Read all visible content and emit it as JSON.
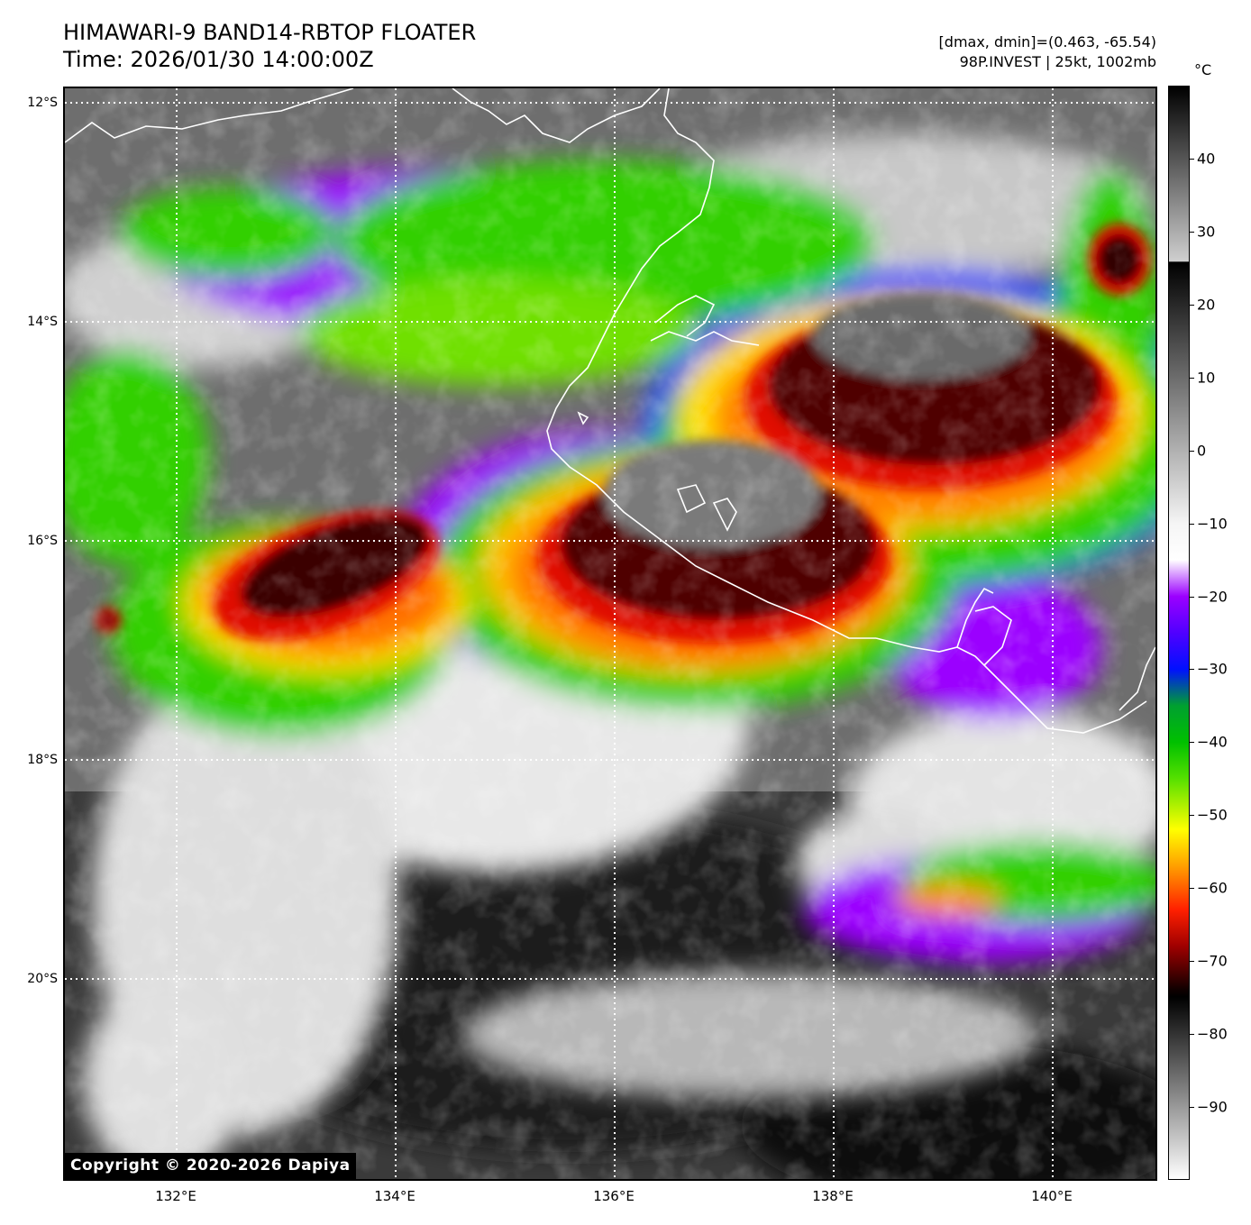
{
  "header": {
    "title_line1": "HIMAWARI-9 BAND14-RBTOP FLOATER",
    "title_line2": "Time: 2026/01/30 14:00:00Z",
    "info_line1": "[dmax, dmin]=(0.463, -65.54)",
    "info_line2": "98P.INVEST | 25kt, 1002mb"
  },
  "map": {
    "lat_labels": [
      "12°S",
      "14°S",
      "16°S",
      "18°S",
      "20°S"
    ],
    "lon_labels": [
      "132°E",
      "134°E",
      "136°E",
      "138°E",
      "140°E"
    ],
    "copyright": "Copyright © 2020-2026 Dapiya",
    "grid": "dotted white",
    "coastline_color": "#ffffff"
  },
  "colorbar": {
    "unit": "°C",
    "tick_labels": [
      "40",
      "30",
      "20",
      "10",
      "0",
      "−10",
      "−20",
      "−30",
      "−40",
      "−50",
      "−60",
      "−70",
      "−80",
      "−90"
    ],
    "tick_values": [
      40,
      30,
      20,
      10,
      0,
      -10,
      -20,
      -30,
      -40,
      -50,
      -60,
      -70,
      -80,
      -90
    ],
    "range": [
      -100,
      50
    ],
    "color_stops": [
      {
        "value": 50,
        "color": "#000000"
      },
      {
        "value": 26,
        "color": "#cfcfcf"
      },
      {
        "value": 25.9,
        "color": "#000000"
      },
      {
        "value": -10,
        "color": "#f5f5f5"
      },
      {
        "value": -15,
        "color": "#ffffff"
      },
      {
        "value": -20,
        "color": "#9b00ff"
      },
      {
        "value": -25,
        "color": "#5000ff"
      },
      {
        "value": -30,
        "color": "#0010ff"
      },
      {
        "value": -35,
        "color": "#00a030"
      },
      {
        "value": -40,
        "color": "#00c000"
      },
      {
        "value": -45,
        "color": "#55e000"
      },
      {
        "value": -52,
        "color": "#ffff00"
      },
      {
        "value": -57,
        "color": "#ffa000"
      },
      {
        "value": -63,
        "color": "#ff2000"
      },
      {
        "value": -68,
        "color": "#a00000"
      },
      {
        "value": -74,
        "color": "#100000"
      },
      {
        "value": -75,
        "color": "#000000"
      },
      {
        "value": -83,
        "color": "#505050"
      },
      {
        "value": -100,
        "color": "#ffffff"
      }
    ]
  }
}
